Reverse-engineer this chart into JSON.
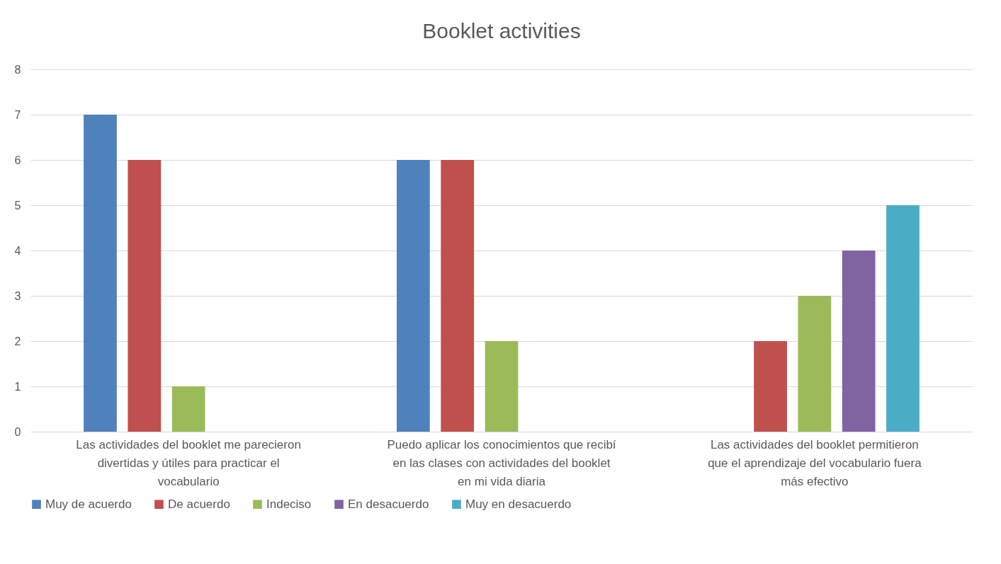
{
  "chart_data": {
    "type": "bar",
    "title": "Booklet activities",
    "categories": [
      "Las actividades del booklet me parecieron divertidas y útiles para practicar el vocabulario",
      "Puedo aplicar los conocimientos que recibí en las clases con actividades del booklet en mi vida diaria",
      "Las actividades del booklet permitieron que el aprendizaje del vocabulario fuera más efectivo"
    ],
    "series": [
      {
        "name": "Muy de acuerdo",
        "color": "#4f81bd",
        "values": [
          7,
          6,
          0
        ]
      },
      {
        "name": "De acuerdo",
        "color": "#c0504d",
        "values": [
          6,
          6,
          2
        ]
      },
      {
        "name": "Indeciso",
        "color": "#9bbb59",
        "values": [
          1,
          2,
          3
        ]
      },
      {
        "name": "En desacuerdo",
        "color": "#8064a2",
        "values": [
          0,
          0,
          4
        ]
      },
      {
        "name": "Muy en desacuerdo",
        "color": "#4bacc6",
        "values": [
          0,
          0,
          5
        ]
      }
    ],
    "ylim": [
      0,
      8
    ],
    "yticks": [
      0,
      1,
      2,
      3,
      4,
      5,
      6,
      7,
      8
    ],
    "grid": "y",
    "legend": "bottom"
  }
}
